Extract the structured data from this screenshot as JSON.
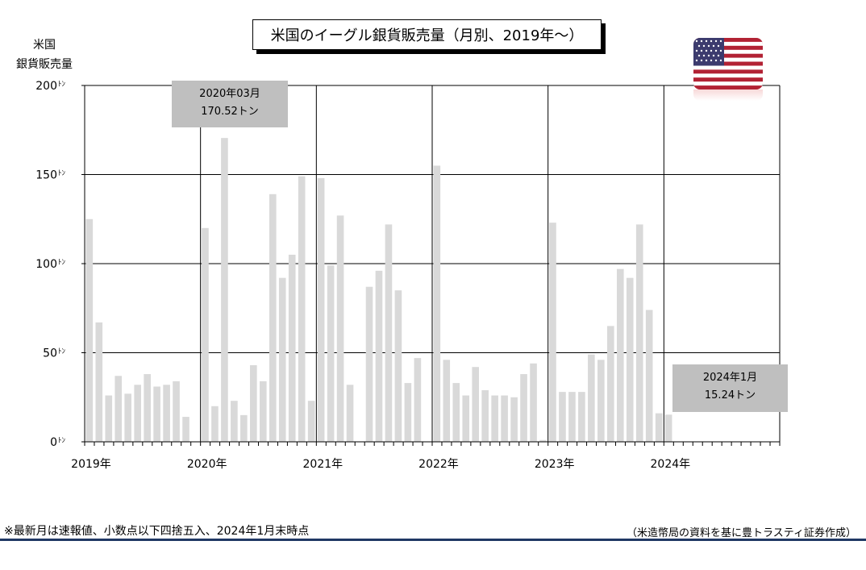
{
  "chart_data": {
    "type": "bar",
    "title": "米国のイーグル銀貨販売量（月別、2019年～）",
    "ylabel_line1": "米国",
    "ylabel_line2": "銀貨販売量",
    "y_unit": "ﾄﾝ",
    "ylim": [
      0,
      200
    ],
    "y_ticks": [
      0,
      50,
      100,
      150,
      200
    ],
    "grid": true,
    "x_start": "2019-01",
    "x_end": "2024-12",
    "year_labels": [
      "2019年",
      "2020年",
      "2021年",
      "2022年",
      "2023年",
      "2024年"
    ],
    "series": [
      {
        "color": "#d9d9d9",
        "values": [
          125,
          67,
          26,
          37,
          27,
          32,
          38,
          31,
          32,
          34,
          14,
          0,
          120,
          20,
          170.52,
          23,
          15,
          43,
          34,
          139,
          92,
          105,
          149,
          23,
          148,
          99,
          127,
          32,
          0,
          87,
          96,
          122,
          85,
          33,
          47,
          0,
          155,
          46,
          33,
          26,
          42,
          29,
          26,
          26,
          25,
          38,
          44,
          1,
          123,
          28,
          28,
          28,
          49,
          46,
          65,
          97,
          92,
          122,
          74,
          16,
          15.24
        ]
      }
    ],
    "annotations": [
      {
        "line1": "2020年03月",
        "line2": "170.52トン"
      },
      {
        "line1": "2024年1月",
        "line2": "15.24トン"
      }
    ]
  },
  "footnote": "※最新月は速報値、小数点以下四捨五入、2024年1月末時点",
  "source": "（米造幣局の資料を基に豊トラスティ証券作成）",
  "flag_icon": "us-flag-icon"
}
